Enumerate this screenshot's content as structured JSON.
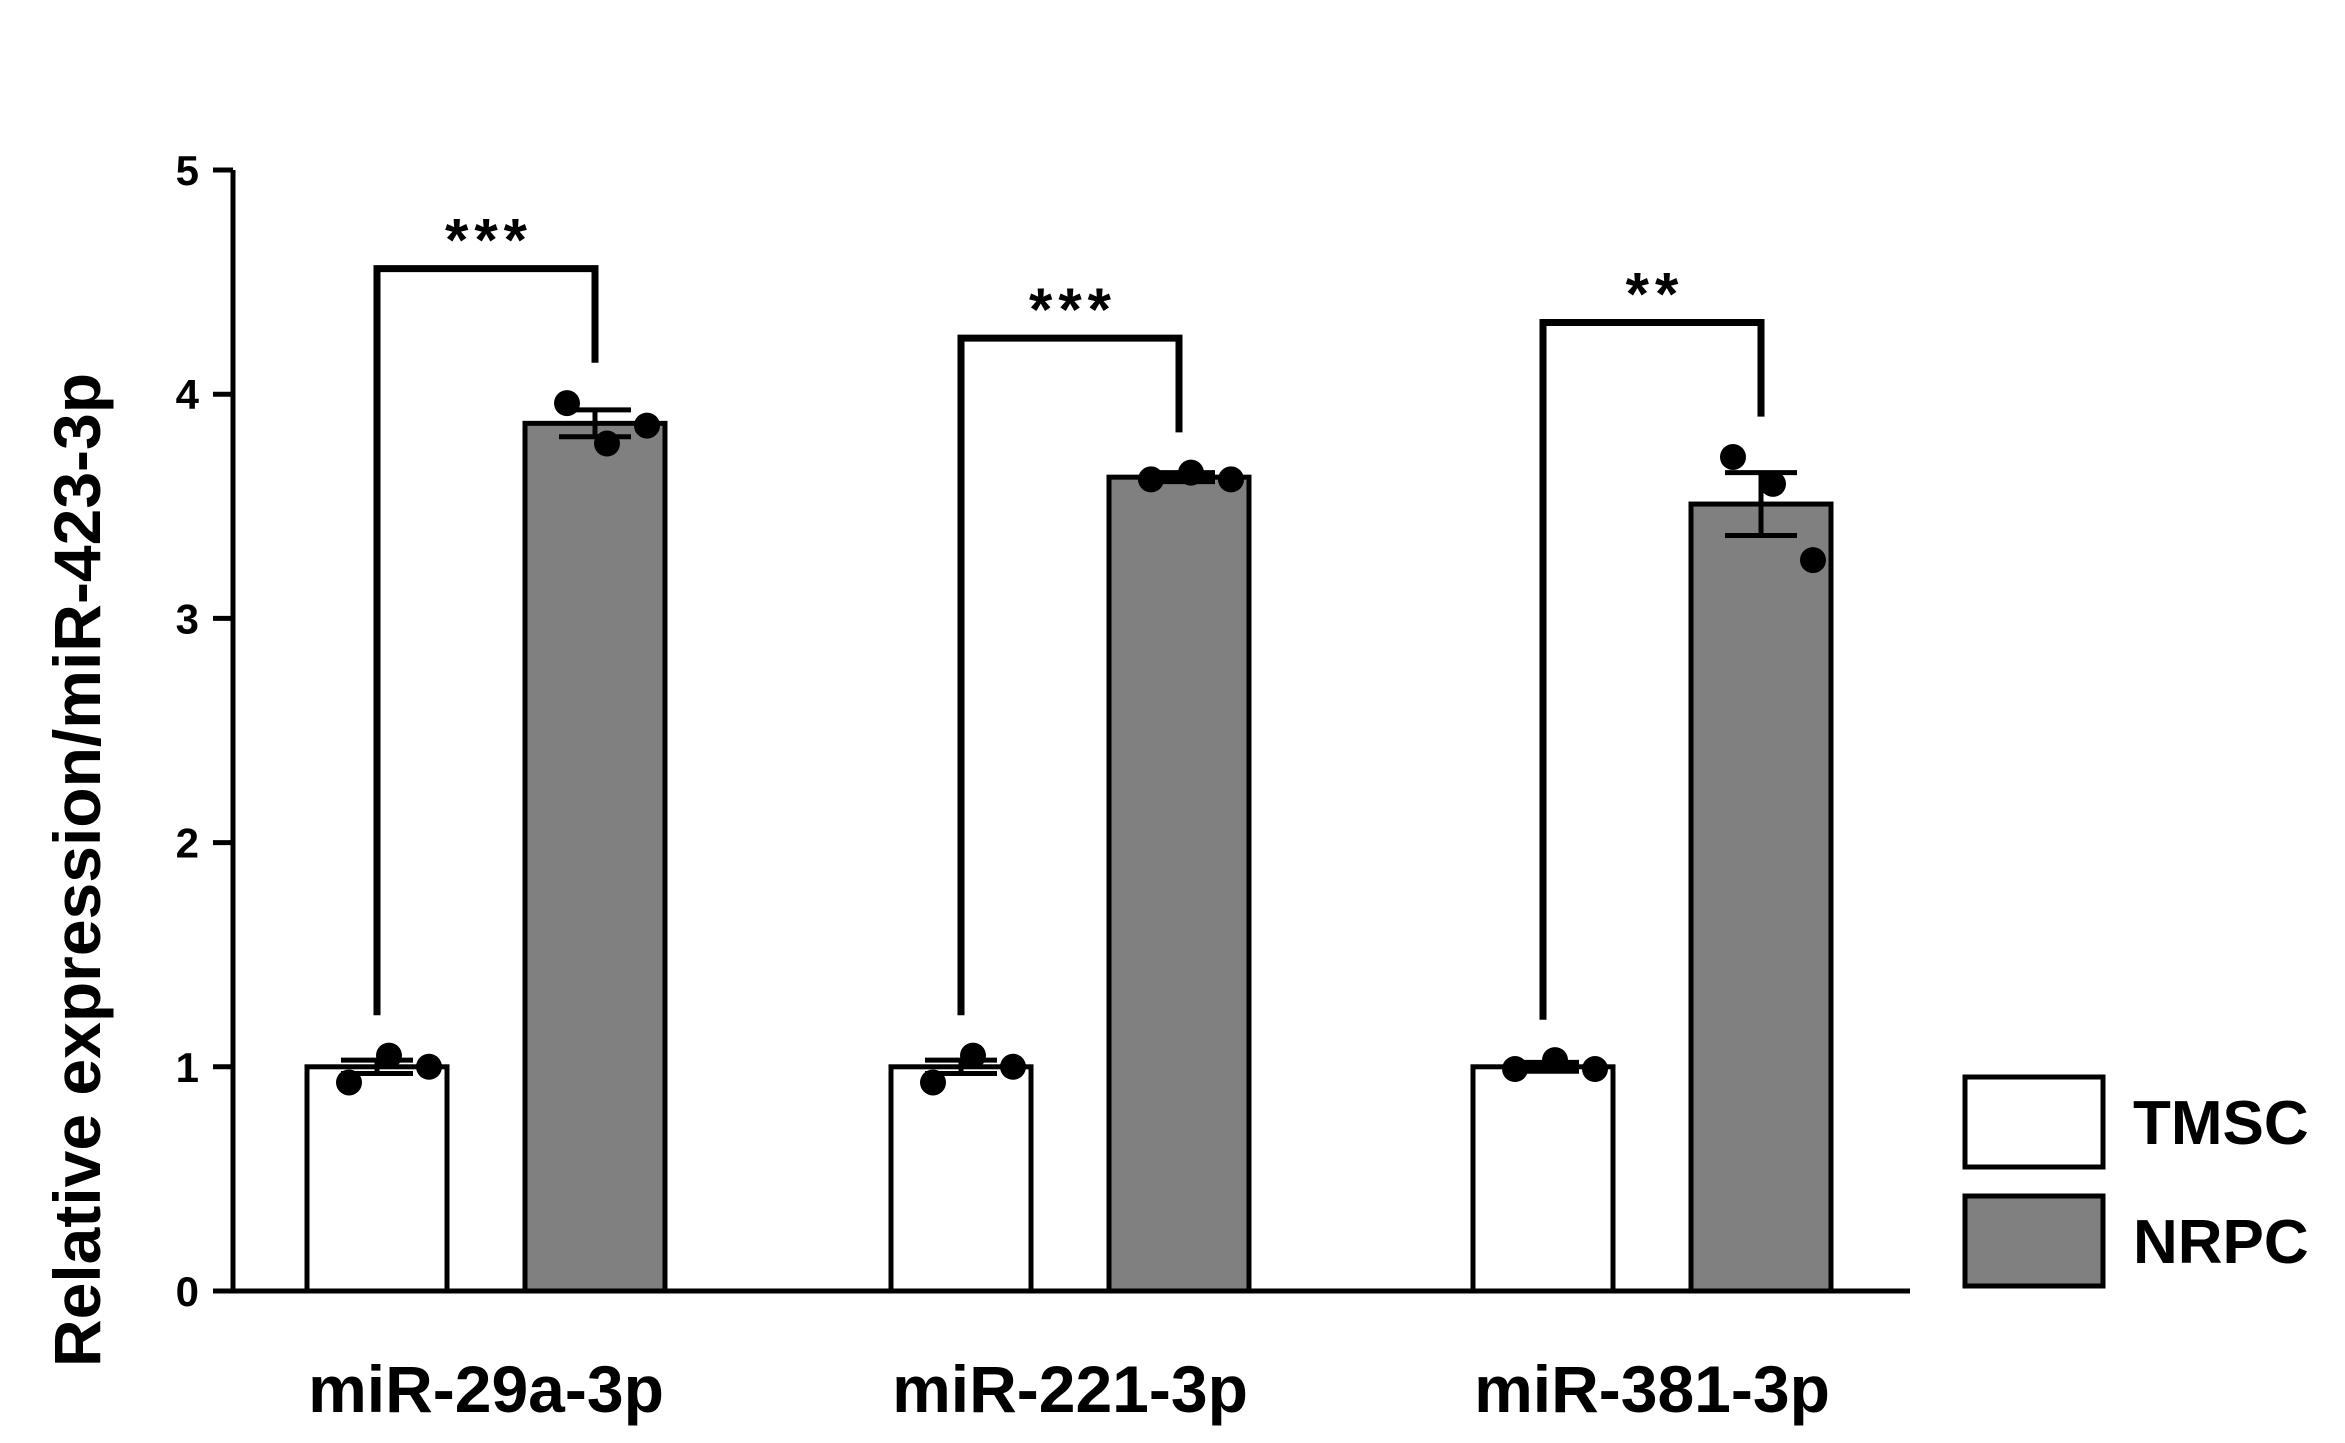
{
  "chart_data": {
    "type": "bar",
    "ylabel": "Relative expression/miR-423-3p",
    "ylim": [
      0,
      5
    ],
    "yticks": [
      "0",
      "1",
      "2",
      "3",
      "4",
      "5"
    ],
    "categories": [
      "miR-29a-3p",
      "miR-221-3p",
      "miR-381-3p"
    ],
    "legend_position": "right",
    "grid": false,
    "series": [
      {
        "name": "TMSC",
        "color": "#ffffff",
        "values": [
          1.0,
          1.0,
          1.0
        ],
        "errors": [
          0.03,
          0.03,
          0.02
        ],
        "points": [
          [
            0.93,
            1.05,
            1.0
          ],
          [
            0.93,
            1.05,
            1.0
          ],
          [
            0.99,
            1.03,
            0.99
          ]
        ]
      },
      {
        "name": "NRPC",
        "color": "#808080",
        "values": [
          3.87,
          3.63,
          3.51
        ],
        "errors": [
          0.06,
          0.02,
          0.14
        ],
        "points": [
          [
            3.96,
            3.78,
            3.86
          ],
          [
            3.62,
            3.65,
            3.62
          ],
          [
            3.72,
            3.6,
            3.26
          ]
        ]
      }
    ],
    "significance": [
      "***",
      "***",
      "**"
    ]
  }
}
